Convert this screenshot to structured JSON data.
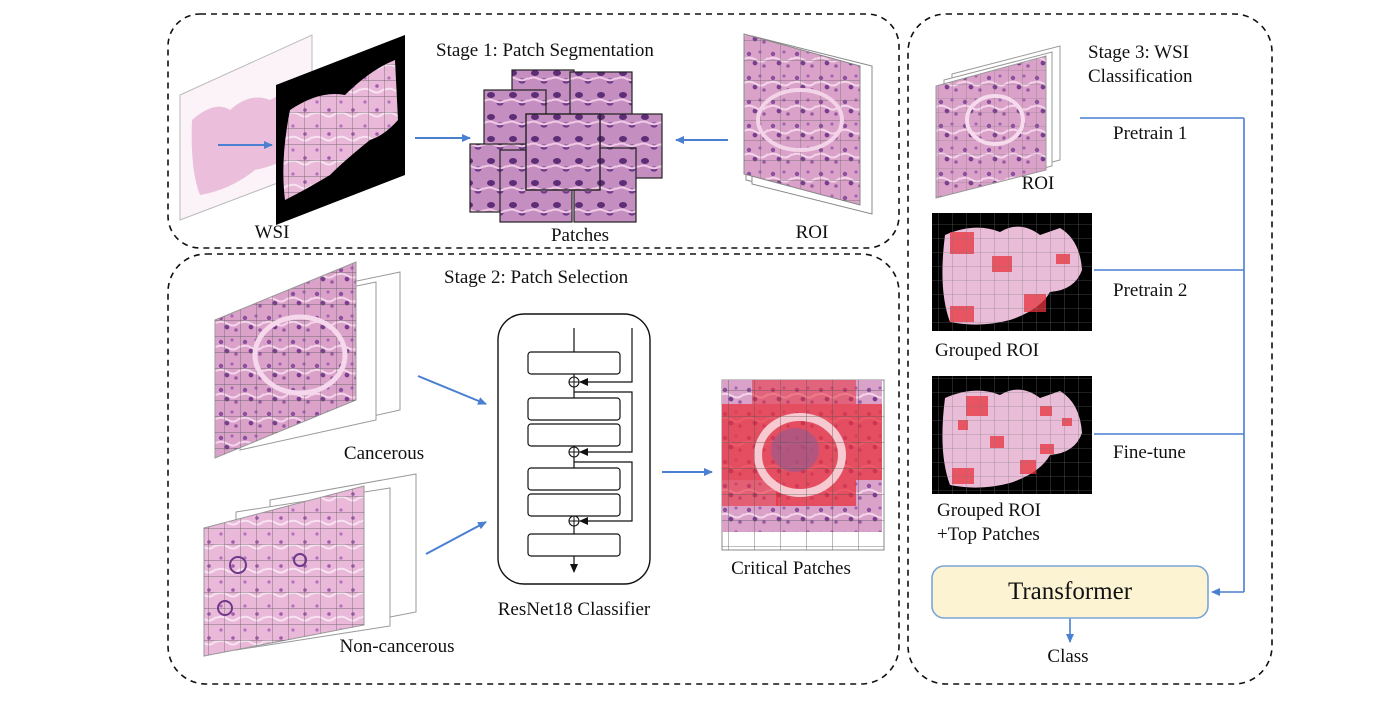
{
  "stage1": {
    "title": "Stage 1: Patch Segmentation",
    "wsi": "WSI",
    "patches": "Patches",
    "roi": "ROI"
  },
  "stage2": {
    "title": "Stage 2: Patch Selection",
    "cancerous": "Cancerous",
    "noncancerous": "Non-cancerous",
    "classifier": "ResNet18 Classifier",
    "critical": "Critical Patches"
  },
  "stage3": {
    "title_line1": "Stage 3: WSI",
    "title_line2": "Classification",
    "roi": "ROI",
    "pretrain1": "Pretrain 1",
    "grouped_roi": "Grouped ROI",
    "pretrain2": "Pretrain 2",
    "grouped_top_line1": "Grouped ROI",
    "grouped_top_line2": "+Top Patches",
    "finetune": "Fine-tune",
    "transformer": "Transformer",
    "class": "Class"
  },
  "colors": {
    "arrow": "#4a7fd1",
    "tissue_pink": "#e6a9cf",
    "tissue_purple": "#8a4f9e",
    "highlight_red": "#e8323c",
    "transformer_fill": "#fcf3d3",
    "transformer_border": "#7aa6d8"
  }
}
